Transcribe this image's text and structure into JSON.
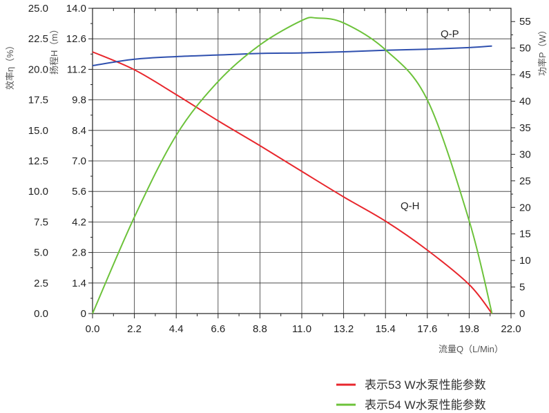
{
  "chart_data": {
    "type": "line",
    "xlabel": "流量Q（L/Min）",
    "ylabel_left_outer": "效率η（%）",
    "ylabel_left_inner": "扬程H（m）",
    "ylabel_right": "功率P（W）",
    "xlim": [
      0,
      22
    ],
    "xticks": [
      "0.0",
      "2.2",
      "4.4",
      "6.6",
      "8.8",
      "11.0",
      "13.2",
      "15.4",
      "17.6",
      "19.8",
      "22.0"
    ],
    "ylim_eff": [
      0,
      25
    ],
    "yticks_eff": [
      "0.0",
      "2.5",
      "5.0",
      "7.5",
      "10.0",
      "12.5",
      "15.0",
      "17.5",
      "20.0",
      "22.5",
      "25.0"
    ],
    "ylim_head": [
      0,
      14
    ],
    "yticks_head": [
      "0",
      "1.4",
      "2.8",
      "4.2",
      "5.6",
      "7.0",
      "8.4",
      "9.8",
      "11.2",
      "12.6",
      "14.0"
    ],
    "ylim_power": [
      0,
      57.5
    ],
    "yticks_power": [
      "0",
      "5",
      "10",
      "15",
      "20",
      "25",
      "30",
      "35",
      "40",
      "45",
      "50",
      "55"
    ],
    "grid": true,
    "series": [
      {
        "name": "Q-H",
        "axis": "head",
        "color": "#e8262c",
        "x": [
          0,
          2.2,
          4.4,
          6.6,
          8.8,
          11.0,
          13.2,
          15.4,
          17.6,
          19.8,
          21.0
        ],
        "y": [
          12.0,
          11.18,
          10.04,
          8.84,
          7.7,
          6.52,
          5.35,
          4.24,
          2.91,
          1.33,
          0
        ]
      },
      {
        "name": "Q-P",
        "axis": "power",
        "color": "#2e4fae",
        "x": [
          0,
          2.2,
          4.4,
          6.6,
          8.8,
          11.0,
          13.2,
          15.4,
          17.6,
          19.8,
          21.0
        ],
        "y": [
          46.7,
          47.9,
          48.4,
          48.7,
          49.0,
          49.1,
          49.3,
          49.6,
          49.8,
          50.1,
          50.4
        ]
      },
      {
        "axis": "eff",
        "color": "#6cc23a",
        "x": [
          0,
          2.2,
          4.4,
          6.6,
          8.8,
          11.0,
          11.8,
          13.2,
          15.4,
          17.6,
          19.8,
          21.0
        ],
        "y": [
          0,
          7.9,
          14.6,
          19.0,
          22.0,
          24.0,
          24.2,
          23.8,
          21.6,
          17.5,
          7.6,
          0
        ]
      }
    ],
    "legend": {
      "placement": "bottom-right",
      "entries": [
        {
          "label": "表示53 W水泵性能参数",
          "color": "#e8262c"
        },
        {
          "label": "表示54 W水泵性能参数",
          "color": "#6cc23a"
        }
      ]
    }
  }
}
